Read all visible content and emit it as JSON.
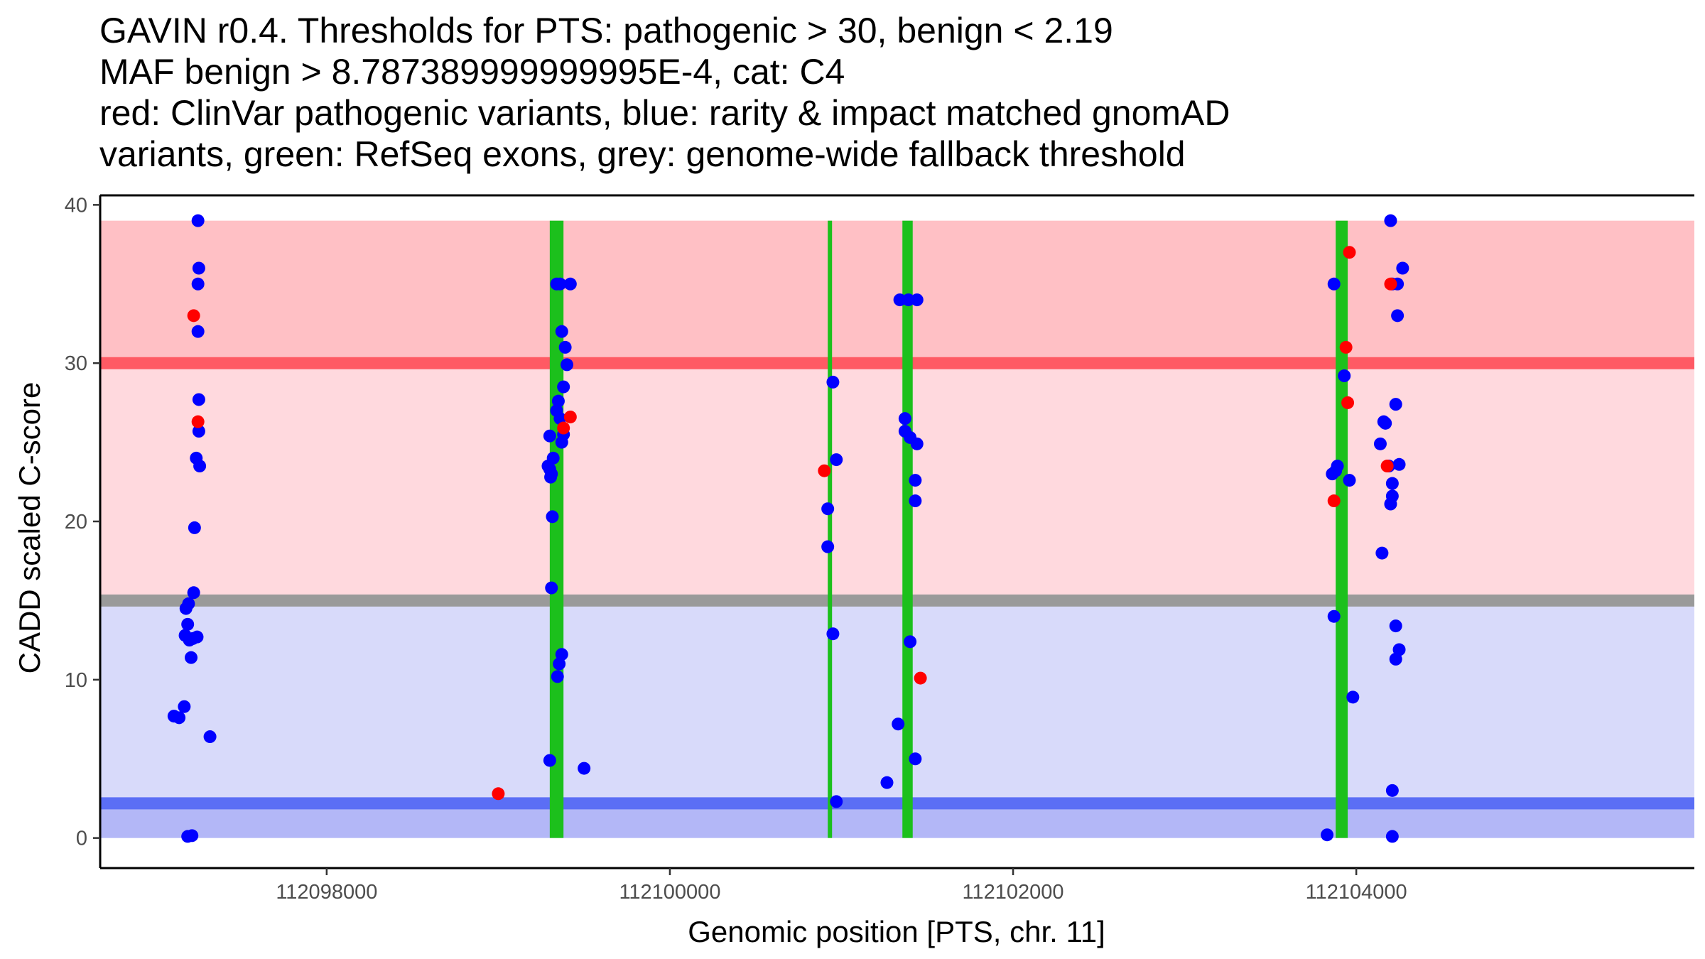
{
  "chart_data": {
    "type": "scatter",
    "title_lines": [
      "GAVIN r0.4. Thresholds for PTS: pathogenic > 30, benign < 2.19",
      "MAF benign > 8.787389999999995E-4, cat: C4",
      "red: ClinVar pathogenic variants, blue: rarity & impact matched gnomAD",
      "variants, green: RefSeq exons, grey: genome-wide fallback threshold"
    ],
    "xlabel": "Genomic position [PTS, chr. 11]",
    "ylabel": "CADD scaled C-score",
    "xlim": [
      112096680,
      112105970
    ],
    "ylim": [
      -1.9,
      40.6
    ],
    "xticks": [
      112098000,
      112100000,
      112102000,
      112104000
    ],
    "xtick_labels": [
      "112098000",
      "112100000",
      "112102000",
      "112104000"
    ],
    "yticks": [
      0,
      10,
      20,
      30,
      40
    ],
    "ytick_labels": [
      "0",
      "10",
      "20",
      "30",
      "40"
    ],
    "region_xrange": [
      112096680,
      112105970
    ],
    "regions": [
      {
        "name": "benign-zone",
        "y0": 0,
        "y1": 2.19,
        "color": "#b3b7f7"
      },
      {
        "name": "below-fallback-zone",
        "y0": 2.19,
        "y1": 15,
        "color": "#d8dafa"
      },
      {
        "name": "above-fallback-zone",
        "y0": 15,
        "y1": 30,
        "color": "#ffd9de"
      },
      {
        "name": "pathogenic-zone",
        "y0": 30,
        "y1": 39,
        "color": "#ffc0c5"
      }
    ],
    "threshold_lines": [
      {
        "name": "benign-threshold",
        "y": 2.19,
        "color": "#5b6ef5"
      },
      {
        "name": "fallback-threshold",
        "y": 15,
        "color": "#9a9a9a"
      },
      {
        "name": "pathogenic-threshold",
        "y": 30,
        "color": "#ff5a64"
      }
    ],
    "exons": [
      {
        "start": 112099300,
        "end": 112099380
      },
      {
        "start": 112100920,
        "end": 112100945
      },
      {
        "start": 112101355,
        "end": 112101415
      },
      {
        "start": 112103880,
        "end": 112103950
      }
    ],
    "exon_ylim": [
      0,
      39
    ],
    "exon_color": "#1cc01c",
    "series": [
      {
        "name": "gnomAD variants",
        "color": "#0000ff",
        "points": [
          [
            112097250,
            39
          ],
          [
            112097255,
            36
          ],
          [
            112097250,
            35
          ],
          [
            112097250,
            32
          ],
          [
            112097255,
            27.7
          ],
          [
            112097255,
            25.7
          ],
          [
            112097240,
            24
          ],
          [
            112097260,
            23.5
          ],
          [
            112097230,
            19.6
          ],
          [
            112097225,
            15.5
          ],
          [
            112097195,
            14.8
          ],
          [
            112097180,
            14.5
          ],
          [
            112097190,
            13.5
          ],
          [
            112097175,
            12.8
          ],
          [
            112097200,
            12.5
          ],
          [
            112097245,
            12.7
          ],
          [
            112097210,
            11.4
          ],
          [
            112097220,
            12.6
          ],
          [
            112097170,
            8.3
          ],
          [
            112097110,
            7.7
          ],
          [
            112097140,
            7.6
          ],
          [
            112097320,
            6.4
          ],
          [
            112097190,
            0.1
          ],
          [
            112097215,
            0.15
          ],
          [
            112099360,
            35
          ],
          [
            112099420,
            35
          ],
          [
            112099340,
            35
          ],
          [
            112099370,
            32
          ],
          [
            112099390,
            31
          ],
          [
            112099400,
            29.9
          ],
          [
            112099380,
            28.5
          ],
          [
            112099350,
            27.6
          ],
          [
            112099340,
            27
          ],
          [
            112099360,
            26.5
          ],
          [
            112099380,
            25.5
          ],
          [
            112099300,
            25.4
          ],
          [
            112099370,
            25
          ],
          [
            112099320,
            24
          ],
          [
            112099290,
            23.5
          ],
          [
            112099300,
            23.3
          ],
          [
            112099310,
            23
          ],
          [
            112099305,
            22.8
          ],
          [
            112099315,
            20.3
          ],
          [
            112099310,
            15.8
          ],
          [
            112099370,
            11.6
          ],
          [
            112099355,
            11
          ],
          [
            112099345,
            10.2
          ],
          [
            112099300,
            4.9
          ],
          [
            112099500,
            4.4
          ],
          [
            112100950,
            28.8
          ],
          [
            112100970,
            23.9
          ],
          [
            112100920,
            20.8
          ],
          [
            112100920,
            18.4
          ],
          [
            112100950,
            12.9
          ],
          [
            112100970,
            2.3
          ],
          [
            112101340,
            34
          ],
          [
            112101390,
            34
          ],
          [
            112101440,
            34
          ],
          [
            112101370,
            26.5
          ],
          [
            112101370,
            25.7
          ],
          [
            112101400,
            25.3
          ],
          [
            112101440,
            24.9
          ],
          [
            112101430,
            22.6
          ],
          [
            112101430,
            21.3
          ],
          [
            112101400,
            12.4
          ],
          [
            112101330,
            7.2
          ],
          [
            112101430,
            5
          ],
          [
            112101265,
            3.5
          ],
          [
            112103870,
            35
          ],
          [
            112103930,
            29.2
          ],
          [
            112103890,
            23.5
          ],
          [
            112103860,
            23
          ],
          [
            112103880,
            23.2
          ],
          [
            112103960,
            22.6
          ],
          [
            112103870,
            14
          ],
          [
            112103980,
            8.9
          ],
          [
            112103830,
            0.2
          ],
          [
            112104200,
            39
          ],
          [
            112104270,
            36
          ],
          [
            112104240,
            35
          ],
          [
            112104210,
            35
          ],
          [
            112104240,
            33
          ],
          [
            112104230,
            27.4
          ],
          [
            112104170,
            26.2
          ],
          [
            112104160,
            26.3
          ],
          [
            112104140,
            24.9
          ],
          [
            112104190,
            23.5
          ],
          [
            112104250,
            23.6
          ],
          [
            112104210,
            22.4
          ],
          [
            112104210,
            21.6
          ],
          [
            112104200,
            21.1
          ],
          [
            112104150,
            18
          ],
          [
            112104230,
            13.4
          ],
          [
            112104250,
            11.9
          ],
          [
            112104230,
            11.3
          ],
          [
            112104210,
            3
          ],
          [
            112104210,
            0.1
          ]
        ]
      },
      {
        "name": "ClinVar pathogenic variants",
        "color": "#ff0000",
        "points": [
          [
            112097225,
            33
          ],
          [
            112097250,
            26.3
          ],
          [
            112099000,
            2.8
          ],
          [
            112099380,
            25.9
          ],
          [
            112099420,
            26.6
          ],
          [
            112100900,
            23.2
          ],
          [
            112101460,
            10.1
          ],
          [
            112103960,
            37
          ],
          [
            112103940,
            31
          ],
          [
            112103950,
            27.5
          ],
          [
            112103870,
            21.3
          ],
          [
            112104200,
            35
          ],
          [
            112104180,
            23.5
          ]
        ]
      }
    ]
  }
}
